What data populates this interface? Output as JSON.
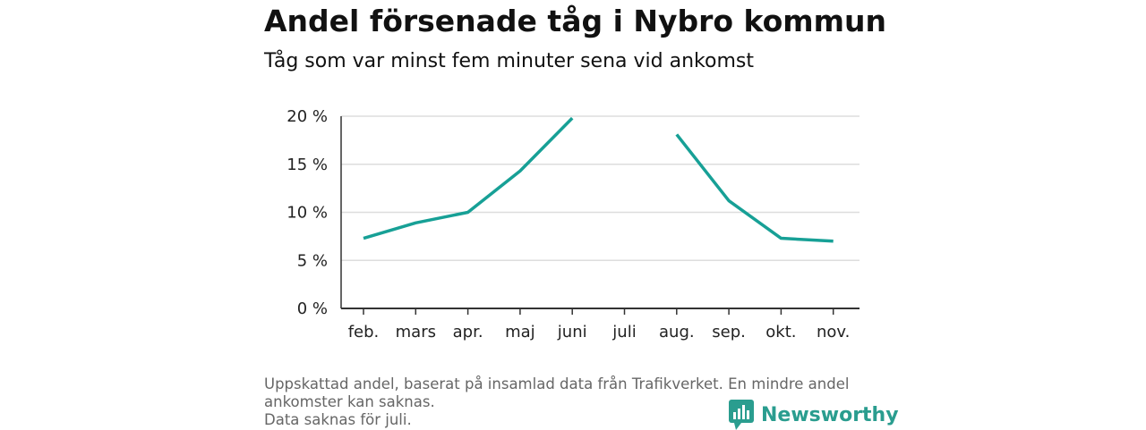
{
  "header": {
    "title": "Andel försenade tåg i Nybro kommun",
    "subtitle": "Tåg som var minst fem minuter sena vid ankomst"
  },
  "footer": {
    "lines": [
      "Uppskattad andel, baserat på insamlad data från Trafikverket. En mindre andel",
      "ankomster kan saknas.",
      "Data saknas för juli."
    ]
  },
  "logo": {
    "text": "Newsworthy",
    "color": "#2a9d8f"
  },
  "chart_data": {
    "type": "line",
    "title": "Andel försenade tåg i Nybro kommun",
    "subtitle": "Tåg som var minst fem minuter sena vid ankomst",
    "categories": [
      "feb.",
      "mars",
      "apr.",
      "maj",
      "juni",
      "juli",
      "aug.",
      "sep.",
      "okt.",
      "nov."
    ],
    "series": [
      {
        "values": [
          7.3,
          8.9,
          10.0,
          14.3,
          19.8,
          null,
          18.1,
          11.2,
          7.3,
          7.0
        ],
        "color": "#17a096"
      }
    ],
    "yticks": [
      0,
      5,
      10,
      15,
      20
    ],
    "ytick_labels": [
      "0 %",
      "5 %",
      "10 %",
      "15 %",
      "20 %"
    ],
    "ylim": [
      0,
      20
    ],
    "grid": true,
    "legend": "none"
  }
}
